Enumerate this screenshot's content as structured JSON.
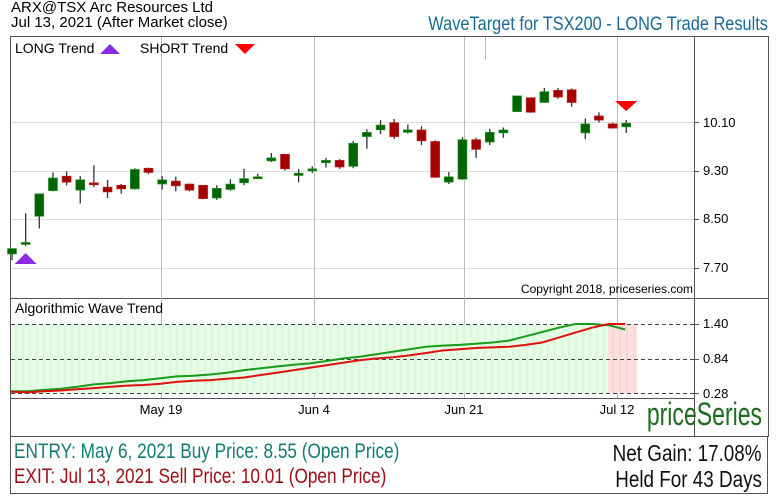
{
  "header": {
    "ticker_line": "ARX@TSX Arc Resources Ltd",
    "date_line": "Jul 13, 2021 (After Market close)",
    "title": "WaveTarget for TSX200 - LONG Trade Results"
  },
  "legend": {
    "long_label": "LONG Trend",
    "short_label": "SHORT Trend",
    "long_color": "#8a2be2",
    "short_color": "#ff0000"
  },
  "copyright": "Copyright 2018, priceseries.com",
  "wave_panel": {
    "label": "Algorithmic Wave Trend",
    "y_ticks": [
      "1.40",
      "0.84",
      "0.28"
    ]
  },
  "brand": "priceSeries",
  "trade": {
    "entry": "ENTRY: May 6, 2021 Buy Price: 8.55 (Open Price)",
    "exit": "EXIT: Jul 13, 2021 Sell Price: 10.01 (Open Price)",
    "net_gain": "Net Gain: 17.08%",
    "held": "Held For 43 Days"
  },
  "colors": {
    "up": "#006400",
    "down": "#a50000",
    "title": "#1a6a96",
    "entry": "#137a74",
    "exit": "#a00d14",
    "wave_green": "#1a9a1a",
    "wave_red": "#e01010",
    "bg_long": "#e4fde4",
    "bg_short": "#fde0e0"
  },
  "chart_data": [
    {
      "type": "candlestick",
      "title": "ARX@TSX Arc Resources Ltd",
      "ylabel": "Price",
      "y_ticks": [
        "10.10",
        "9.30",
        "8.50",
        "7.70"
      ],
      "ylim": [
        7.45,
        10.95
      ],
      "x_ticks": [
        "May 19",
        "Jun 4",
        "Jun 21",
        "Jul 12"
      ],
      "grid": true,
      "markers": [
        {
          "type": "LONG",
          "index": 1
        },
        {
          "type": "SHORT",
          "index": 45
        }
      ],
      "candles": [
        {
          "o": 7.93,
          "h": 8.0,
          "l": 7.83,
          "c": 8.02
        },
        {
          "o": 8.1,
          "h": 8.6,
          "l": 8.06,
          "c": 8.12
        },
        {
          "o": 8.55,
          "h": 8.9,
          "l": 8.35,
          "c": 8.92
        },
        {
          "o": 8.97,
          "h": 9.27,
          "l": 8.96,
          "c": 9.18
        },
        {
          "o": 9.21,
          "h": 9.29,
          "l": 9.06,
          "c": 9.11
        },
        {
          "o": 8.98,
          "h": 9.21,
          "l": 8.76,
          "c": 9.15
        },
        {
          "o": 9.1,
          "h": 9.39,
          "l": 9.03,
          "c": 9.07
        },
        {
          "o": 9.03,
          "h": 9.15,
          "l": 8.85,
          "c": 8.95
        },
        {
          "o": 9.06,
          "h": 9.08,
          "l": 8.92,
          "c": 9.0
        },
        {
          "o": 9.0,
          "h": 9.34,
          "l": 8.99,
          "c": 9.32
        },
        {
          "o": 9.34,
          "h": 9.35,
          "l": 9.24,
          "c": 9.27
        },
        {
          "o": 9.08,
          "h": 9.21,
          "l": 8.99,
          "c": 9.15
        },
        {
          "o": 9.13,
          "h": 9.2,
          "l": 8.96,
          "c": 9.05
        },
        {
          "o": 9.08,
          "h": 9.09,
          "l": 8.96,
          "c": 8.98
        },
        {
          "o": 9.06,
          "h": 9.05,
          "l": 8.83,
          "c": 8.84
        },
        {
          "o": 8.85,
          "h": 9.06,
          "l": 8.82,
          "c": 9.01
        },
        {
          "o": 8.99,
          "h": 9.16,
          "l": 8.97,
          "c": 9.08
        },
        {
          "o": 9.1,
          "h": 9.33,
          "l": 9.06,
          "c": 9.17
        },
        {
          "o": 9.17,
          "h": 9.25,
          "l": 9.16,
          "c": 9.2
        },
        {
          "o": 9.46,
          "h": 9.59,
          "l": 9.44,
          "c": 9.51
        },
        {
          "o": 9.57,
          "h": 9.57,
          "l": 9.3,
          "c": 9.33
        },
        {
          "o": 9.22,
          "h": 9.33,
          "l": 9.11,
          "c": 9.26
        },
        {
          "o": 9.3,
          "h": 9.37,
          "l": 9.26,
          "c": 9.33
        },
        {
          "o": 9.43,
          "h": 9.51,
          "l": 9.35,
          "c": 9.47
        },
        {
          "o": 9.47,
          "h": 9.49,
          "l": 9.33,
          "c": 9.36
        },
        {
          "o": 9.37,
          "h": 9.79,
          "l": 9.34,
          "c": 9.75
        },
        {
          "o": 9.86,
          "h": 9.98,
          "l": 9.66,
          "c": 9.93
        },
        {
          "o": 9.97,
          "h": 10.13,
          "l": 9.9,
          "c": 10.05
        },
        {
          "o": 10.09,
          "h": 10.15,
          "l": 9.82,
          "c": 9.86
        },
        {
          "o": 9.93,
          "h": 10.06,
          "l": 9.91,
          "c": 9.97
        },
        {
          "o": 9.97,
          "h": 10.03,
          "l": 9.72,
          "c": 9.79
        },
        {
          "o": 9.78,
          "h": 9.8,
          "l": 9.18,
          "c": 9.19
        },
        {
          "o": 9.11,
          "h": 9.28,
          "l": 9.08,
          "c": 9.2
        },
        {
          "o": 9.16,
          "h": 9.85,
          "l": 9.15,
          "c": 9.81
        },
        {
          "o": 9.81,
          "h": 9.84,
          "l": 9.51,
          "c": 9.65
        },
        {
          "o": 9.77,
          "h": 9.99,
          "l": 9.72,
          "c": 9.93
        },
        {
          "o": 9.92,
          "h": 10.01,
          "l": 9.84,
          "c": 9.97
        },
        {
          "o": 10.27,
          "h": 10.53,
          "l": 10.27,
          "c": 10.53
        },
        {
          "o": 10.5,
          "h": 10.5,
          "l": 10.25,
          "c": 10.26
        },
        {
          "o": 10.42,
          "h": 10.66,
          "l": 10.42,
          "c": 10.6
        },
        {
          "o": 10.62,
          "h": 10.66,
          "l": 10.48,
          "c": 10.51
        },
        {
          "o": 10.63,
          "h": 10.65,
          "l": 10.35,
          "c": 10.42
        },
        {
          "o": 9.92,
          "h": 10.16,
          "l": 9.82,
          "c": 10.07
        },
        {
          "o": 10.2,
          "h": 10.26,
          "l": 10.09,
          "c": 10.13
        },
        {
          "o": 10.07,
          "h": 10.09,
          "l": 9.99,
          "c": 10.0
        },
        {
          "o": 10.02,
          "h": 10.13,
          "l": 9.92,
          "c": 10.08
        }
      ]
    },
    {
      "type": "line",
      "title": "Algorithmic Wave Trend",
      "ylim": [
        0.28,
        1.4
      ],
      "y_ticks": [
        "1.40",
        "0.84",
        "0.28"
      ],
      "series": [
        {
          "name": "green",
          "values": [
            0.31,
            0.31,
            0.33,
            0.35,
            0.38,
            0.42,
            0.44,
            0.47,
            0.49,
            0.52,
            0.55,
            0.56,
            0.58,
            0.61,
            0.65,
            0.68,
            0.71,
            0.74,
            0.76,
            0.8,
            0.84,
            0.87,
            0.91,
            0.95,
            0.99,
            1.03,
            1.05,
            1.06,
            1.08,
            1.1,
            1.13,
            1.2,
            1.27,
            1.34,
            1.4,
            1.4,
            1.38,
            1.31
          ]
        },
        {
          "name": "red",
          "values": [
            0.3,
            0.29,
            0.31,
            0.32,
            0.34,
            0.36,
            0.38,
            0.4,
            0.41,
            0.43,
            0.46,
            0.48,
            0.49,
            0.51,
            0.53,
            0.57,
            0.61,
            0.65,
            0.69,
            0.73,
            0.77,
            0.81,
            0.84,
            0.86,
            0.89,
            0.93,
            0.97,
            0.99,
            1.01,
            1.02,
            1.03,
            1.06,
            1.1,
            1.18,
            1.26,
            1.34,
            1.4,
            1.4
          ]
        }
      ],
      "background_regions": [
        {
          "state": "LONG",
          "from": 0,
          "to": 34
        },
        {
          "state": "SHORT",
          "from": 34,
          "to": 37
        }
      ]
    }
  ]
}
